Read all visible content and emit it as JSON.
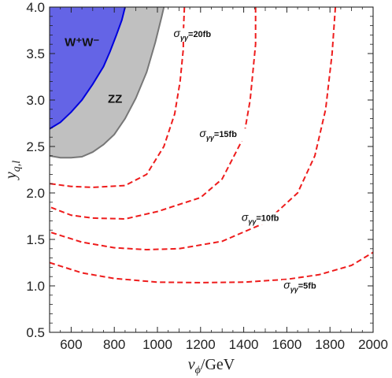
{
  "chart_data": {
    "type": "line",
    "xlabel": "v_ϕ/GeV",
    "ylabel": "y_q,l",
    "xlim": [
      500,
      2000
    ],
    "ylim": [
      0.5,
      4.0
    ],
    "x_ticks": [
      600,
      800,
      1000,
      1200,
      1400,
      1600,
      1800,
      2000
    ],
    "y_ticks": [
      "0.5",
      "1.0",
      "1.5",
      "2.0",
      "2.5",
      "3.0",
      "3.5",
      "4.0"
    ],
    "grid": false,
    "excluded_regions": [
      {
        "name": "W⁺W⁻",
        "label": "W⁺W⁻",
        "fill_color": "#6464e6",
        "edge_color": "#0000dd",
        "boundary": [
          [
            500,
            2.69
          ],
          [
            550,
            2.76
          ],
          [
            600,
            2.87
          ],
          [
            650,
            3.0
          ],
          [
            700,
            3.17
          ],
          [
            750,
            3.36
          ],
          [
            780,
            3.52
          ],
          [
            810,
            3.7
          ],
          [
            835,
            3.86
          ],
          [
            850,
            4.0
          ]
        ]
      },
      {
        "name": "ZZ",
        "label": "ZZ",
        "fill_color": "#c0c0c0",
        "edge_color": "#777777",
        "boundary": [
          [
            500,
            2.4
          ],
          [
            550,
            2.38
          ],
          [
            600,
            2.38
          ],
          [
            650,
            2.39
          ],
          [
            700,
            2.44
          ],
          [
            750,
            2.52
          ],
          [
            800,
            2.63
          ],
          [
            850,
            2.8
          ],
          [
            900,
            3.02
          ],
          [
            950,
            3.3
          ],
          [
            990,
            3.62
          ],
          [
            1020,
            3.9
          ],
          [
            1030,
            4.0
          ]
        ]
      }
    ],
    "series": [
      {
        "name": "σγγ=20fb",
        "label_main": "σ",
        "label_sub": "γγ",
        "label_tail": "=20fb",
        "label_at": [
          1075,
          3.68
        ],
        "color": "#ee1c1c",
        "style": "dashed",
        "points": [
          [
            1125,
            4.0
          ],
          [
            1120,
            3.72
          ],
          [
            1120,
            3.55
          ],
          [
            1105,
            3.2
          ],
          [
            1080,
            2.85
          ],
          [
            1030,
            2.5
          ],
          [
            950,
            2.2
          ],
          [
            850,
            2.08
          ],
          [
            700,
            2.06
          ],
          [
            600,
            2.07
          ],
          [
            500,
            2.1
          ]
        ]
      },
      {
        "name": "σγγ=15fb",
        "label_main": "σ",
        "label_sub": "γγ",
        "label_tail": "=15fb",
        "label_at": [
          1195,
          2.6
        ],
        "color": "#ee1c1c",
        "style": "dashed",
        "points": [
          [
            1455,
            4.0
          ],
          [
            1455,
            3.6
          ],
          [
            1430,
            3.0
          ],
          [
            1400,
            2.6
          ],
          [
            1300,
            2.15
          ],
          [
            1200,
            1.95
          ],
          [
            1000,
            1.8
          ],
          [
            850,
            1.72
          ],
          [
            700,
            1.73
          ],
          [
            600,
            1.76
          ],
          [
            500,
            1.85
          ]
        ]
      },
      {
        "name": "σγγ=10fb",
        "label_main": "σ",
        "label_sub": "γγ",
        "label_tail": "=10fb",
        "label_at": [
          1390,
          1.7
        ],
        "color": "#ee1c1c",
        "style": "dashed",
        "points": [
          [
            1825,
            4.0
          ],
          [
            1810,
            3.5
          ],
          [
            1780,
            2.9
          ],
          [
            1730,
            2.4
          ],
          [
            1650,
            2.0
          ],
          [
            1500,
            1.68
          ],
          [
            1300,
            1.48
          ],
          [
            1100,
            1.4
          ],
          [
            950,
            1.39
          ],
          [
            800,
            1.41
          ],
          [
            650,
            1.47
          ],
          [
            500,
            1.58
          ]
        ]
      },
      {
        "name": "σγγ=5fb",
        "label_main": "σ",
        "label_sub": "γγ",
        "label_tail": "=5fb",
        "label_at": [
          1585,
          0.97
        ],
        "color": "#ee1c1c",
        "style": "dashed",
        "points": [
          [
            500,
            1.25
          ],
          [
            650,
            1.14
          ],
          [
            800,
            1.08
          ],
          [
            1000,
            1.04
          ],
          [
            1200,
            1.035
          ],
          [
            1400,
            1.04
          ],
          [
            1600,
            1.07
          ],
          [
            1750,
            1.12
          ],
          [
            1900,
            1.22
          ],
          [
            2000,
            1.36
          ]
        ]
      }
    ]
  }
}
